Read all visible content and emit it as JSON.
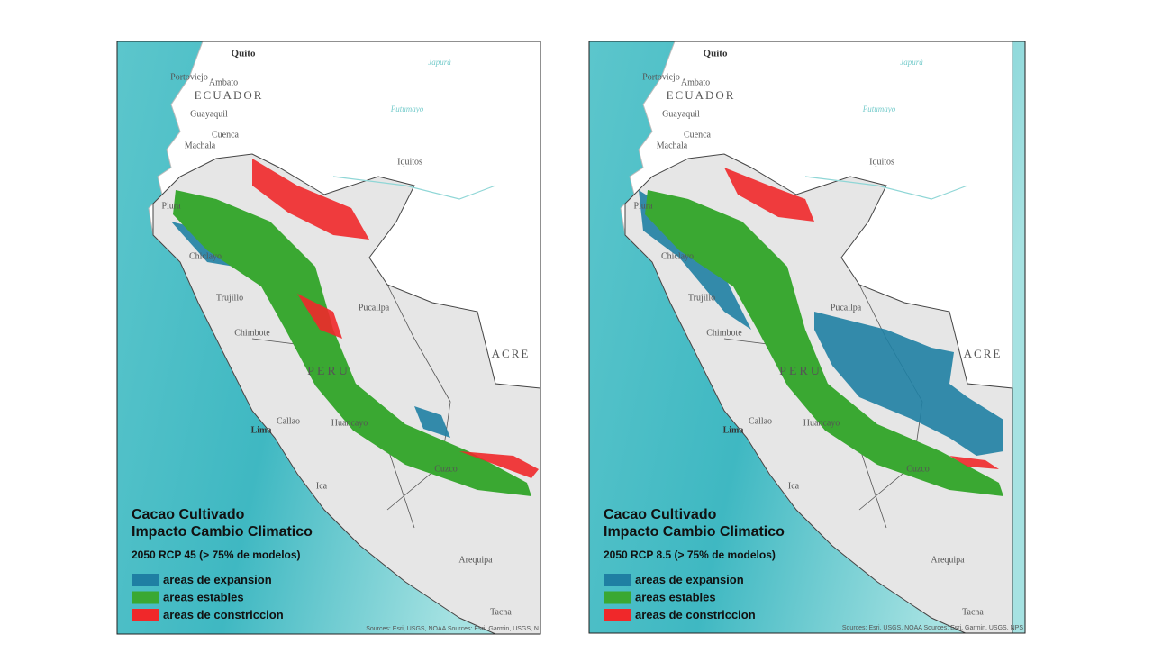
{
  "panels": [
    {
      "title": "Cacao Cultivado",
      "title2": "Impacto Cambio Climatico",
      "subtitle": "2050 RCP 45 (> 75% de modelos)",
      "legend": [
        {
          "label": "areas de expansion",
          "color": "#1f7fa3"
        },
        {
          "label": "areas estables",
          "color": "#3aa832"
        },
        {
          "label": "areas de constriccion",
          "color": "#f0282a"
        }
      ],
      "places": [
        "Quito",
        "Portoviejo",
        "Ambato",
        "ECUADOR",
        "Guayaquil",
        "Cuenca",
        "Machala",
        "Iquitos",
        "Piura",
        "Chiclayo",
        "Trujillo",
        "Chimbote",
        "PERU",
        "Pucallpa",
        "ACRE",
        "Callao",
        "Lima",
        "Huancayo",
        "Cuzco",
        "Ica",
        "Arequipa",
        "Tacna",
        "Japurá",
        "Putumayo"
      ],
      "sources": "Sources: Esri, USGS, NOAA  Sources: Esri, Garmin, USGS, N"
    },
    {
      "title": "Cacao Cultivado",
      "title2": "Impacto Cambio Climatico",
      "subtitle": "2050 RCP 8.5 (> 75% de modelos)",
      "legend": [
        {
          "label": "areas de expansion",
          "color": "#1f7fa3"
        },
        {
          "label": "areas estables",
          "color": "#3aa832"
        },
        {
          "label": "areas de constriccion",
          "color": "#f0282a"
        }
      ],
      "places": [
        "Quito",
        "Portoviejo",
        "Ambato",
        "ECUADOR",
        "Guayaquil",
        "Cuenca",
        "Machala",
        "Iquitos",
        "Piura",
        "Chiclayo",
        "Trujillo",
        "Chimbote",
        "PERU",
        "Pucallpa",
        "ACRE",
        "Callao",
        "Lima",
        "Huancayo",
        "Cuzco",
        "Ica",
        "Arequipa",
        "Tacna",
        "Japurá",
        "Putumayo"
      ],
      "sources": "Sources: Esri, USGS, NOAA  Sources: Esri, Garmin, USGS, NPS"
    }
  ]
}
